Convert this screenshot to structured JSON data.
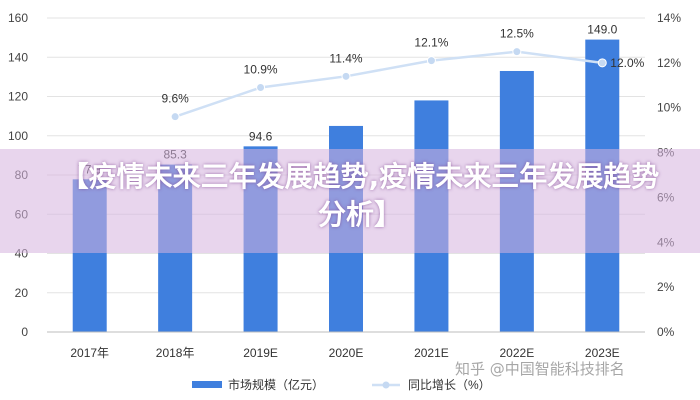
{
  "banner": {
    "title": "【疫情未来三年发展趋势,疫情未来三年发展趋势分析】"
  },
  "watermark": {
    "text": "知乎 @中国智能科技排名"
  },
  "colors": {
    "bar": "#3f7fde",
    "line": "#cfe0f5",
    "marker": "#c5d9f2"
  },
  "chart_data": {
    "type": "bar",
    "categories": [
      "2017年",
      "2018年",
      "2019E",
      "2020E",
      "2021E",
      "2022E",
      "2023E"
    ],
    "series": [
      {
        "name": "市场规模（亿元）",
        "type": "bar",
        "axis": "left",
        "values": [
          77.8,
          85.3,
          94.6,
          105.0,
          118.0,
          133.0,
          149.0
        ],
        "labels": [
          "77.8",
          "85.3",
          "94.6",
          "",
          "",
          "",
          "149.0"
        ]
      },
      {
        "name": "同比增长（%）",
        "type": "line",
        "axis": "right",
        "values": [
          null,
          9.6,
          10.9,
          11.4,
          12.1,
          12.5,
          12.0
        ],
        "labels": [
          "",
          "9.6%",
          "10.9%",
          "11.4%",
          "12.1%",
          "12.5%",
          "12.0%"
        ]
      }
    ],
    "y_left": {
      "min": 0,
      "max": 160,
      "ticks": [
        "0",
        "20",
        "40",
        "60",
        "80",
        "100",
        "120",
        "140",
        "160"
      ]
    },
    "y_right": {
      "min": 0,
      "max": 14,
      "ticks": [
        "0%",
        "2%",
        "4%",
        "6%",
        "8%",
        "10%",
        "12%",
        "14%"
      ]
    },
    "legend_position": "bottom-center",
    "grid": true
  }
}
